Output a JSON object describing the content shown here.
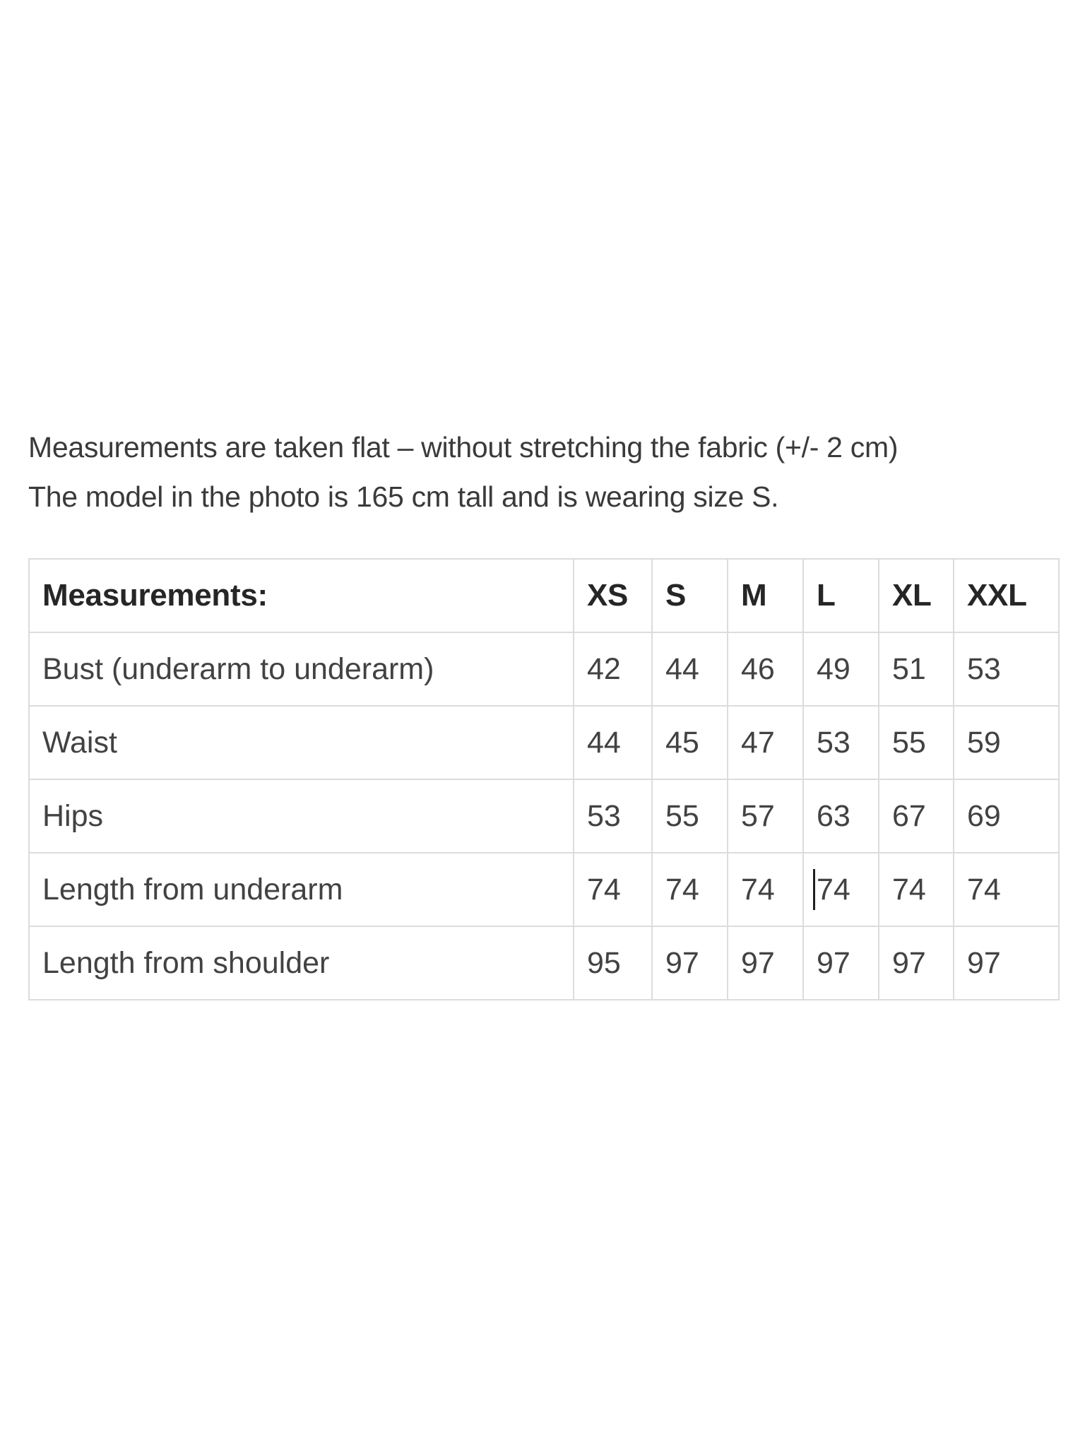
{
  "page": {
    "background": "#ffffff"
  },
  "colors": {
    "body_text": "#424242",
    "heading_text": "#262626",
    "intro_text": "#3a3a3a",
    "table_border": "#dcdcdc",
    "caret": "#1f1f1f"
  },
  "intro": {
    "line1": "Measurements are taken flat – without stretching the fabric (+/- 2 cm)",
    "line2": "The model in the photo is 165 cm tall and is wearing size S."
  },
  "table": {
    "header": [
      "Measurements:",
      "XS",
      "S",
      "M",
      "L",
      "XL",
      "XXL"
    ],
    "rows": [
      {
        "label": "Bust (underarm to underarm)",
        "values": [
          42,
          44,
          46,
          49,
          51,
          53
        ]
      },
      {
        "label": "Waist",
        "values": [
          44,
          45,
          47,
          53,
          55,
          59
        ]
      },
      {
        "label": "Hips",
        "values": [
          53,
          55,
          57,
          63,
          67,
          69
        ]
      },
      {
        "label": "Length from underarm",
        "values": [
          74,
          74,
          74,
          74,
          74,
          74
        ]
      },
      {
        "label": "Length from shoulder",
        "values": [
          95,
          97,
          97,
          97,
          97,
          97
        ]
      }
    ],
    "caret": {
      "row_index": 3,
      "col_index": 3
    }
  }
}
